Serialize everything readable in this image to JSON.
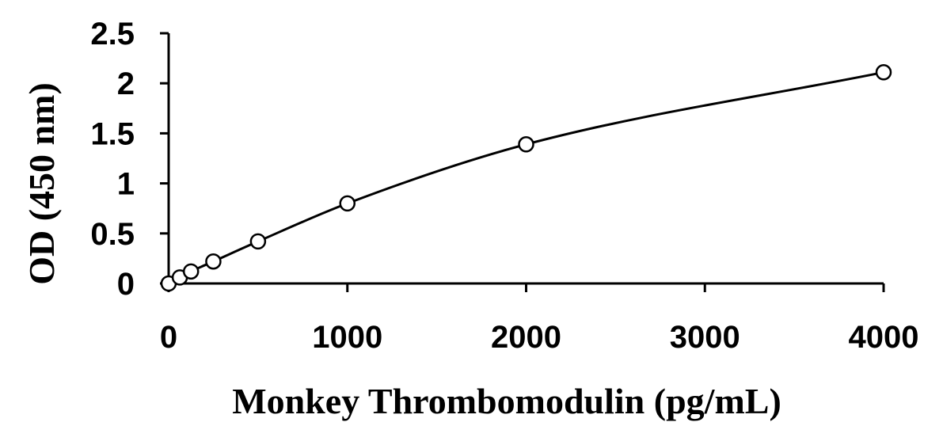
{
  "chart_data": {
    "type": "scatter",
    "title": "",
    "xlabel": "Monkey Thrombomodulin (pg/mL)",
    "ylabel": "OD (450 nm)",
    "xlim": [
      0,
      4000
    ],
    "ylim": [
      0,
      2.5
    ],
    "xticks": [
      0,
      1000,
      2000,
      3000,
      4000
    ],
    "xtick_labels": [
      "0",
      "1000",
      "2000",
      "3000",
      "4000"
    ],
    "yticks": [
      0,
      0.5,
      1,
      1.5,
      2,
      2.5
    ],
    "ytick_labels": [
      "0",
      "0.5",
      "1",
      "1.5",
      "2",
      "2.5"
    ],
    "grid": false,
    "legend": "none",
    "marker": "open-circle",
    "fit_line": "smooth-curve",
    "series": [
      {
        "x": [
          0,
          62.5,
          125,
          250,
          500,
          1000,
          2000,
          4000
        ],
        "y": [
          0.0,
          0.06,
          0.12,
          0.22,
          0.42,
          0.8,
          1.39,
          2.11
        ]
      }
    ]
  }
}
